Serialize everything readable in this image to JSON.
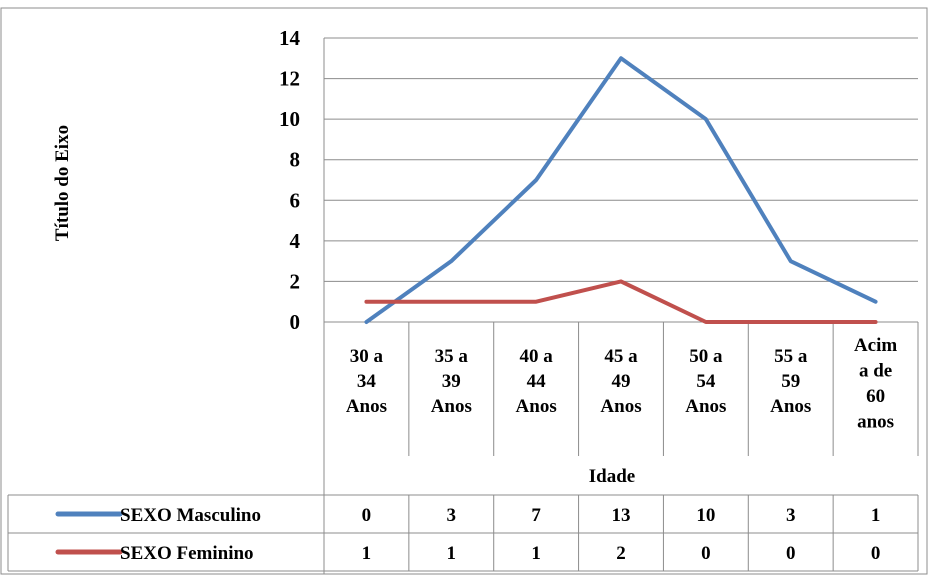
{
  "chart_data": {
    "type": "line",
    "title": "",
    "xlabel": "Idade",
    "ylabel": "Título do Eixo",
    "ylim": [
      0,
      14
    ],
    "yticks": [
      0,
      2,
      4,
      6,
      8,
      10,
      12,
      14
    ],
    "grid": true,
    "legend": "data-table",
    "categories": [
      [
        "30 a",
        "34",
        "Anos"
      ],
      [
        "35 a",
        "39",
        "Anos"
      ],
      [
        "40 a",
        "44",
        "Anos"
      ],
      [
        "45 a",
        "49",
        "Anos"
      ],
      [
        "50 a",
        "54",
        "Anos"
      ],
      [
        "55 a",
        "59",
        "Anos"
      ],
      [
        "Acim",
        "a de",
        "60",
        "anos"
      ]
    ],
    "series": [
      {
        "name": "SEXO Masculino",
        "color": "#4F81BD",
        "values": [
          0,
          3,
          7,
          13,
          10,
          3,
          1
        ]
      },
      {
        "name": "SEXO Feminino",
        "color": "#C0504D",
        "values": [
          1,
          1,
          1,
          2,
          0,
          0,
          0
        ]
      }
    ]
  }
}
